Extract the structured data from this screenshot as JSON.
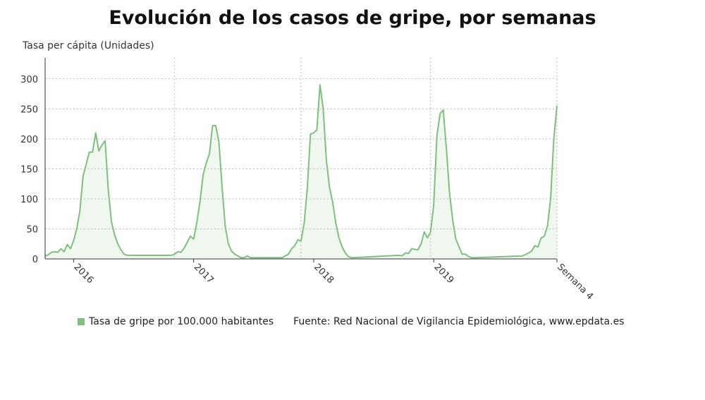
{
  "chart_data": {
    "type": "area",
    "title": "Evolución de los casos de gripe, por semanas",
    "ylabel": "Tasa per cápita (Unidades)",
    "xlabel": "",
    "ylim": [
      0,
      335
    ],
    "yticks": [
      0,
      50,
      100,
      150,
      200,
      250,
      300
    ],
    "xlim": [
      0,
      162
    ],
    "xticks": [
      {
        "x": 9,
        "label": "2016"
      },
      {
        "x": 47,
        "label": "2017"
      },
      {
        "x": 85,
        "label": "2018"
      },
      {
        "x": 123,
        "label": "2019"
      },
      {
        "x": 162,
        "label": "Semana 4"
      }
    ],
    "vgrid_x": [
      41,
      81,
      122,
      162
    ],
    "legend_position": "bottom",
    "color": "#7fbf7f",
    "series": [
      {
        "name": "Tasa de gripe por 100.000 habitantes",
        "points": [
          [
            0,
            5
          ],
          [
            1,
            7
          ],
          [
            2,
            11
          ],
          [
            3,
            12
          ],
          [
            4,
            11
          ],
          [
            5,
            17
          ],
          [
            6,
            12
          ],
          [
            7,
            24
          ],
          [
            8,
            17
          ],
          [
            9,
            30
          ],
          [
            10,
            50
          ],
          [
            11,
            80
          ],
          [
            12,
            138
          ],
          [
            13,
            158
          ],
          [
            14,
            178
          ],
          [
            15,
            178
          ],
          [
            16,
            210
          ],
          [
            17,
            180
          ],
          [
            18,
            190
          ],
          [
            19,
            197
          ],
          [
            20,
            115
          ],
          [
            21,
            62
          ],
          [
            22,
            40
          ],
          [
            23,
            25
          ],
          [
            24,
            15
          ],
          [
            25,
            8
          ],
          [
            26,
            6
          ],
          [
            27,
            6
          ],
          [
            28,
            6
          ],
          [
            36,
            6
          ],
          [
            38,
            6
          ],
          [
            39,
            6
          ],
          [
            40,
            6
          ],
          [
            41,
            8
          ],
          [
            42,
            12
          ],
          [
            43,
            11
          ],
          [
            44,
            18
          ],
          [
            45,
            28
          ],
          [
            46,
            38
          ],
          [
            47,
            33
          ],
          [
            48,
            60
          ],
          [
            49,
            95
          ],
          [
            50,
            140
          ],
          [
            51,
            160
          ],
          [
            52,
            175
          ],
          [
            53,
            222
          ],
          [
            54,
            222
          ],
          [
            55,
            195
          ],
          [
            56,
            120
          ],
          [
            57,
            55
          ],
          [
            58,
            25
          ],
          [
            59,
            13
          ],
          [
            60,
            8
          ],
          [
            61,
            5
          ],
          [
            62,
            2
          ],
          [
            63,
            2
          ],
          [
            64,
            5
          ],
          [
            65,
            2
          ],
          [
            66,
            2
          ],
          [
            75,
            2
          ],
          [
            76,
            5
          ],
          [
            77,
            8
          ],
          [
            78,
            17
          ],
          [
            79,
            22
          ],
          [
            80,
            32
          ],
          [
            81,
            30
          ],
          [
            82,
            60
          ],
          [
            83,
            120
          ],
          [
            84,
            208
          ],
          [
            85,
            210
          ],
          [
            86,
            215
          ],
          [
            87,
            290
          ],
          [
            88,
            250
          ],
          [
            89,
            165
          ],
          [
            90,
            120
          ],
          [
            91,
            95
          ],
          [
            92,
            60
          ],
          [
            93,
            35
          ],
          [
            94,
            20
          ],
          [
            95,
            10
          ],
          [
            96,
            4
          ],
          [
            97,
            2
          ],
          [
            112,
            6
          ],
          [
            113,
            5
          ],
          [
            114,
            10
          ],
          [
            115,
            9
          ],
          [
            116,
            17
          ],
          [
            117,
            16
          ],
          [
            118,
            15
          ],
          [
            119,
            25
          ],
          [
            120,
            45
          ],
          [
            121,
            35
          ],
          [
            122,
            45
          ],
          [
            123,
            90
          ],
          [
            124,
            205
          ],
          [
            125,
            242
          ],
          [
            126,
            248
          ],
          [
            127,
            185
          ],
          [
            128,
            110
          ],
          [
            129,
            65
          ],
          [
            130,
            33
          ],
          [
            131,
            20
          ],
          [
            132,
            8
          ],
          [
            133,
            8
          ],
          [
            134,
            4
          ],
          [
            135,
            2
          ],
          [
            136,
            2
          ],
          [
            151,
            5
          ],
          [
            152,
            7
          ],
          [
            153,
            10
          ],
          [
            154,
            13
          ],
          [
            155,
            22
          ],
          [
            156,
            20
          ],
          [
            157,
            35
          ],
          [
            158,
            38
          ],
          [
            159,
            55
          ],
          [
            160,
            100
          ],
          [
            161,
            200
          ],
          [
            162,
            255
          ]
        ]
      }
    ]
  },
  "legend": {
    "series_label": "Tasa de gripe por 100.000 habitantes",
    "source": "Fuente: Red Nacional de Vigilancia Epidemiológica, www.epdata.es"
  }
}
